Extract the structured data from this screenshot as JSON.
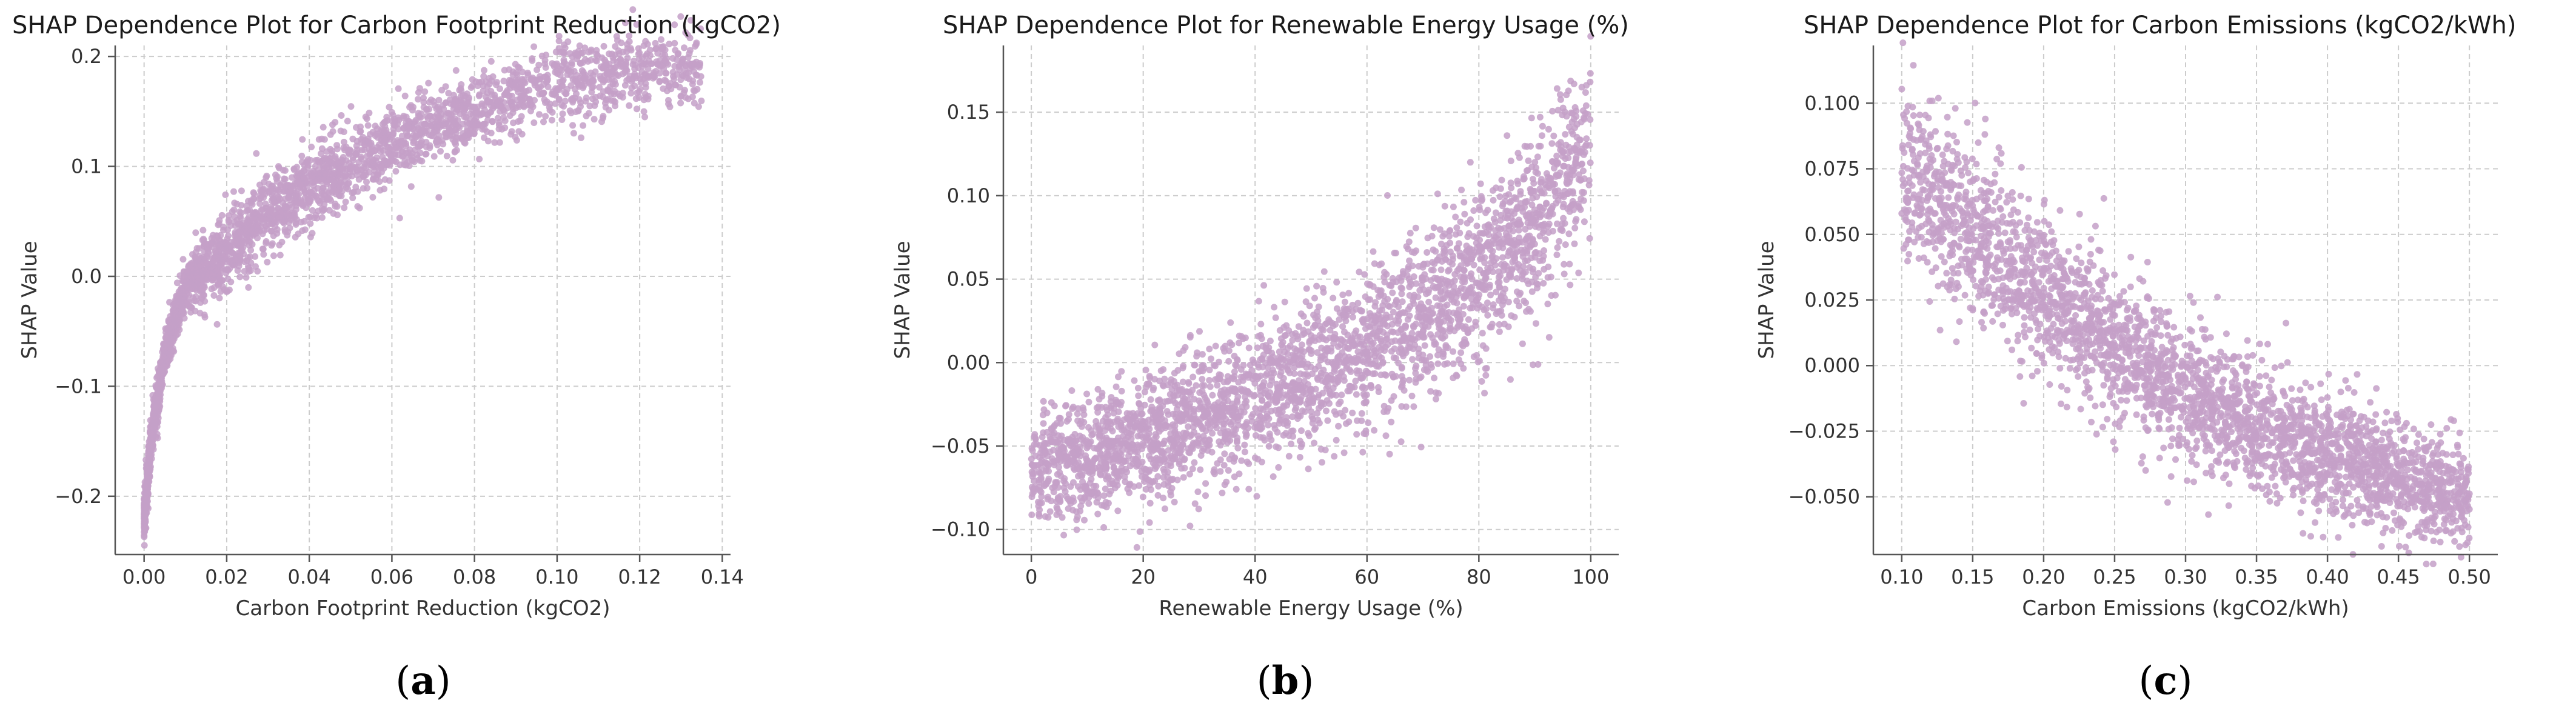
{
  "theme": {
    "point_color": "#c4a0c8",
    "point_opacity": 0.85
  },
  "chart_data": [
    {
      "type": "scatter",
      "caption": "a",
      "title": "SHAP Dependence Plot for Carbon Footprint Reduction (kgCO2)",
      "xlabel": "Carbon Footprint Reduction (kgCO2)",
      "ylabel": "SHAP Value",
      "xlim": [
        -0.007,
        0.142
      ],
      "ylim": [
        -0.253,
        0.21
      ],
      "xticks": [
        0.0,
        0.02,
        0.04,
        0.06,
        0.08,
        0.1,
        0.12,
        0.14
      ],
      "xtick_labels": [
        "0.00",
        "0.02",
        "0.04",
        "0.06",
        "0.08",
        "0.10",
        "0.12",
        "0.14"
      ],
      "yticks": [
        -0.2,
        -0.1,
        0.0,
        0.1,
        0.2
      ],
      "ytick_labels": [
        "−0.2",
        "−0.1",
        "0.0",
        "0.1",
        "0.2"
      ],
      "grid": true,
      "n_points": 3000,
      "trend": {
        "x": [
          0.0,
          0.002,
          0.005,
          0.01,
          0.02,
          0.03,
          0.04,
          0.05,
          0.06,
          0.07,
          0.08,
          0.09,
          0.1,
          0.11,
          0.12,
          0.135
        ],
        "y": [
          -0.22,
          -0.14,
          -0.07,
          -0.01,
          0.025,
          0.058,
          0.08,
          0.101,
          0.12,
          0.138,
          0.15,
          0.163,
          0.176,
          0.183,
          0.189,
          0.19
        ],
        "spread": 0.012,
        "x_distribution": "right_skewed"
      }
    },
    {
      "type": "scatter",
      "caption": "b",
      "title": "SHAP Dependence Plot for Renewable Energy Usage (%)",
      "xlabel": "Renewable Energy Usage (%)",
      "ylabel": "SHAP Value",
      "xlim": [
        -5,
        105
      ],
      "ylim": [
        -0.115,
        0.19
      ],
      "xticks": [
        0,
        20,
        40,
        60,
        80,
        100
      ],
      "xtick_labels": [
        "0",
        "20",
        "40",
        "60",
        "80",
        "100"
      ],
      "yticks": [
        -0.1,
        -0.05,
        0.0,
        0.05,
        0.1,
        0.15
      ],
      "ytick_labels": [
        "−0.10",
        "−0.05",
        "0.00",
        "0.05",
        "0.10",
        "0.15"
      ],
      "grid": true,
      "n_points": 3000,
      "trend": {
        "x": [
          0,
          10,
          20,
          30,
          40,
          50,
          60,
          70,
          80,
          90,
          95,
          100
        ],
        "y": [
          -0.066,
          -0.058,
          -0.047,
          -0.034,
          -0.02,
          -0.006,
          0.01,
          0.028,
          0.05,
          0.08,
          0.105,
          0.135
        ],
        "spread": 0.018,
        "x_distribution": "uniform"
      }
    },
    {
      "type": "scatter",
      "caption": "c",
      "title": "SHAP Dependence Plot for Carbon Emissions (kgCO2/kWh)",
      "xlabel": "Carbon Emissions (kgCO2/kWh)",
      "ylabel": "SHAP Value",
      "xlim": [
        0.08,
        0.52
      ],
      "ylim": [
        -0.072,
        0.122
      ],
      "xticks": [
        0.1,
        0.15,
        0.2,
        0.25,
        0.3,
        0.35,
        0.4,
        0.45,
        0.5
      ],
      "xtick_labels": [
        "0.10",
        "0.15",
        "0.20",
        "0.25",
        "0.30",
        "0.35",
        "0.40",
        "0.45",
        "0.50"
      ],
      "yticks": [
        -0.05,
        -0.025,
        0.0,
        0.025,
        0.05,
        0.075,
        0.1
      ],
      "ytick_labels": [
        "−0.050",
        "−0.025",
        "0.000",
        "0.025",
        "0.050",
        "0.075",
        "0.100"
      ],
      "grid": true,
      "n_points": 3000,
      "trend": {
        "x": [
          0.1,
          0.15,
          0.2,
          0.25,
          0.3,
          0.35,
          0.4,
          0.45,
          0.5
        ],
        "y": [
          0.078,
          0.05,
          0.028,
          0.008,
          -0.01,
          -0.024,
          -0.035,
          -0.043,
          -0.05
        ],
        "spread": 0.013,
        "x_distribution": "uniform"
      }
    }
  ]
}
